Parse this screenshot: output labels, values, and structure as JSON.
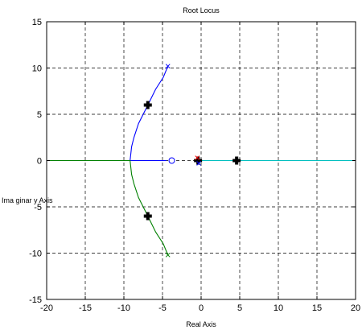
{
  "chart_data": {
    "type": "line",
    "title": "Root Locus",
    "xlabel": "Real Axis",
    "ylabel": "Ima ginar y Axis",
    "xlim": [
      -20,
      20
    ],
    "ylim": [
      -15,
      15
    ],
    "xticks": [
      -20,
      -15,
      -10,
      -5,
      0,
      5,
      10,
      15,
      20
    ],
    "yticks": [
      -15,
      -10,
      -5,
      0,
      5,
      10,
      15
    ],
    "grid": true,
    "grid_style": "dashed",
    "series": [
      {
        "color": "#0000ff",
        "points": [
          [
            -4.5,
            0
          ],
          [
            -9.2,
            0
          ],
          [
            -9.0,
            1.5
          ],
          [
            -8.7,
            2.5
          ],
          [
            -8.1,
            4.0
          ],
          [
            -6.9,
            6.0
          ],
          [
            -5.9,
            7.7
          ],
          [
            -4.9,
            9.0
          ],
          [
            -4.3,
            10.2
          ]
        ]
      },
      {
        "color": "#008000",
        "points": [
          [
            -20,
            0
          ],
          [
            -9.2,
            0
          ],
          [
            -9.0,
            -1.5
          ],
          [
            -8.7,
            -2.5
          ],
          [
            -8.1,
            -4.0
          ],
          [
            -6.9,
            -6.0
          ],
          [
            -5.9,
            -7.7
          ],
          [
            -4.9,
            -9.0
          ],
          [
            -4.3,
            -10.2
          ]
        ]
      },
      {
        "color": "#00bfbf",
        "points": [
          [
            -0.2,
            0
          ],
          [
            20,
            0
          ]
        ]
      },
      {
        "color": "#ff0000",
        "points": [
          [
            -0.6,
            0
          ],
          [
            -0.1,
            0
          ]
        ]
      }
    ],
    "markers": [
      {
        "shape": "plus-bold",
        "x": -6.9,
        "y": 6.0,
        "color": "#000000"
      },
      {
        "shape": "plus-bold",
        "x": -6.9,
        "y": -6.0,
        "color": "#000000"
      },
      {
        "shape": "plus-bold",
        "x": -0.4,
        "y": 0,
        "color": "#000000"
      },
      {
        "shape": "plus-bold",
        "x": 4.6,
        "y": 0,
        "color": "#000000"
      },
      {
        "shape": "circle",
        "x": -3.8,
        "y": 0,
        "color": "#0000ff"
      },
      {
        "shape": "cross",
        "x": -0.5,
        "y": 0.3,
        "color": "#ff0000"
      },
      {
        "shape": "cross",
        "x": -0.3,
        "y": -0.3,
        "color": "#0000ff"
      },
      {
        "shape": "cross",
        "x": -4.3,
        "y": 10.2,
        "color": "#0000ff"
      },
      {
        "shape": "cross",
        "x": -4.3,
        "y": -10.2,
        "color": "#008000"
      }
    ]
  }
}
